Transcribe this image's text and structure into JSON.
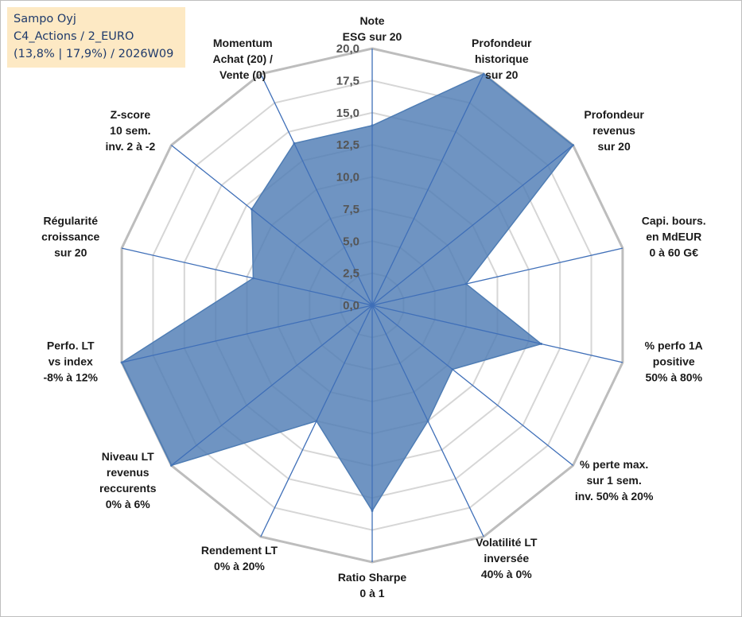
{
  "info": {
    "company": "Sampo Oyj",
    "category": "C4_Actions / 2_EURO",
    "stats": "(13,8% | 17,9%) / 2026W09"
  },
  "chart_data": {
    "type": "radar",
    "scale_min": 0,
    "scale_max": 20,
    "ticks": [
      "0,0",
      "2,5",
      "5,0",
      "7,5",
      "10,0",
      "12,5",
      "15,0",
      "17,5",
      "20,0"
    ],
    "axes": [
      [
        "Note",
        "ESG sur 20"
      ],
      [
        "Profondeur",
        "historique",
        "sur 20"
      ],
      [
        "Profondeur",
        "revenus",
        "sur 20"
      ],
      [
        "Capi. bours.",
        "en MdEUR",
        "0 à 60 G€"
      ],
      [
        "% perfo 1A",
        "positive",
        "50% à 80%"
      ],
      [
        "% perte max.",
        "sur 1 sem.",
        "inv. 50% à 20%"
      ],
      [
        "Volatilité LT",
        "inversée",
        "40% à 0%"
      ],
      [
        "Ratio Sharpe",
        "0 à 1"
      ],
      [
        "Rendement LT",
        "0% à 20%"
      ],
      [
        "Niveau LT",
        "revenus",
        "reccurents",
        "0% à 6%"
      ],
      [
        "Perfo. LT",
        "vs index",
        "-8% à 12%"
      ],
      [
        "Régularité",
        "croissance",
        "sur 20"
      ],
      [
        "Z-score",
        "10 sem.",
        "inv. 2 à -2"
      ],
      [
        "Momentum",
        "Achat (20) /",
        "Vente (0)"
      ]
    ],
    "series": [
      {
        "name": "Sampo Oyj",
        "color": "#4f7db4",
        "values": [
          14,
          20,
          20,
          7.5,
          13.5,
          8,
          10,
          16,
          10,
          20,
          20,
          9.5,
          12,
          14
        ]
      }
    ]
  }
}
